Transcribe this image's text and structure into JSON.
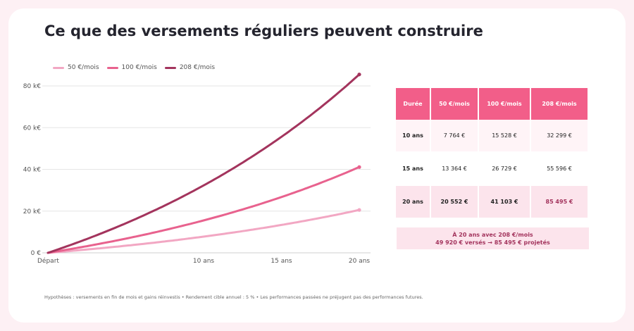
{
  "title": "Ce que des versements réguliers peuvent construire",
  "colors": {
    "light": "#f2a7c3",
    "mid": "#e8628e",
    "dark": "#a3345d",
    "header": "#f25e89"
  },
  "legend": [
    {
      "label": "50 €/mois",
      "color": "#f2a7c3"
    },
    {
      "label": "100 €/mois",
      "color": "#e8628e"
    },
    {
      "label": "208 €/mois",
      "color": "#a3345d"
    }
  ],
  "chart_data": {
    "type": "line",
    "x_ticks": [
      {
        "x": 0,
        "label": "Départ"
      },
      {
        "x": 10,
        "label": "10 ans"
      },
      {
        "x": 15,
        "label": "15 ans"
      },
      {
        "x": 20,
        "label": "20 ans"
      }
    ],
    "y_ticks": [
      {
        "y": 0,
        "label": "0 €"
      },
      {
        "y": 20000,
        "label": "20 k€"
      },
      {
        "y": 40000,
        "label": "40 k€"
      },
      {
        "y": 60000,
        "label": "60 k€"
      },
      {
        "y": 80000,
        "label": "80 k€"
      }
    ],
    "xlim": [
      0,
      20
    ],
    "ylim": [
      0,
      80000
    ],
    "rate": 0.05,
    "series": [
      {
        "name": "50 €/mois",
        "monthly": 50,
        "color": "#f2a7c3",
        "final": 20552
      },
      {
        "name": "100 €/mois",
        "monthly": 100,
        "color": "#e8628e",
        "final": 41103
      },
      {
        "name": "208 €/mois",
        "monthly": 208,
        "color": "#a3345d",
        "final": 85495
      }
    ],
    "grid": true,
    "legend_position": "top-left"
  },
  "table": {
    "headers": [
      "Durée",
      "50 €/mois",
      "100 €/mois",
      "208 €/mois"
    ],
    "rows": [
      [
        "10 ans",
        "7 764 €",
        "15 528 €",
        "32 299 €"
      ],
      [
        "15 ans",
        "13 364 €",
        "26 729 €",
        "55 596 €"
      ],
      [
        "20 ans",
        "20 552 €",
        "41 103 €",
        "85 495 €"
      ]
    ]
  },
  "summary": {
    "line1": "À 20 ans avec 208 €/mois",
    "line2": "49 920 € versés → 85 495 € projetés"
  },
  "footnote": "Hypothèses : versements en fin de mois et gains réinvestis • Rendement cible annuel : 5 % • Les performances passées ne préjugent pas des performances futures."
}
